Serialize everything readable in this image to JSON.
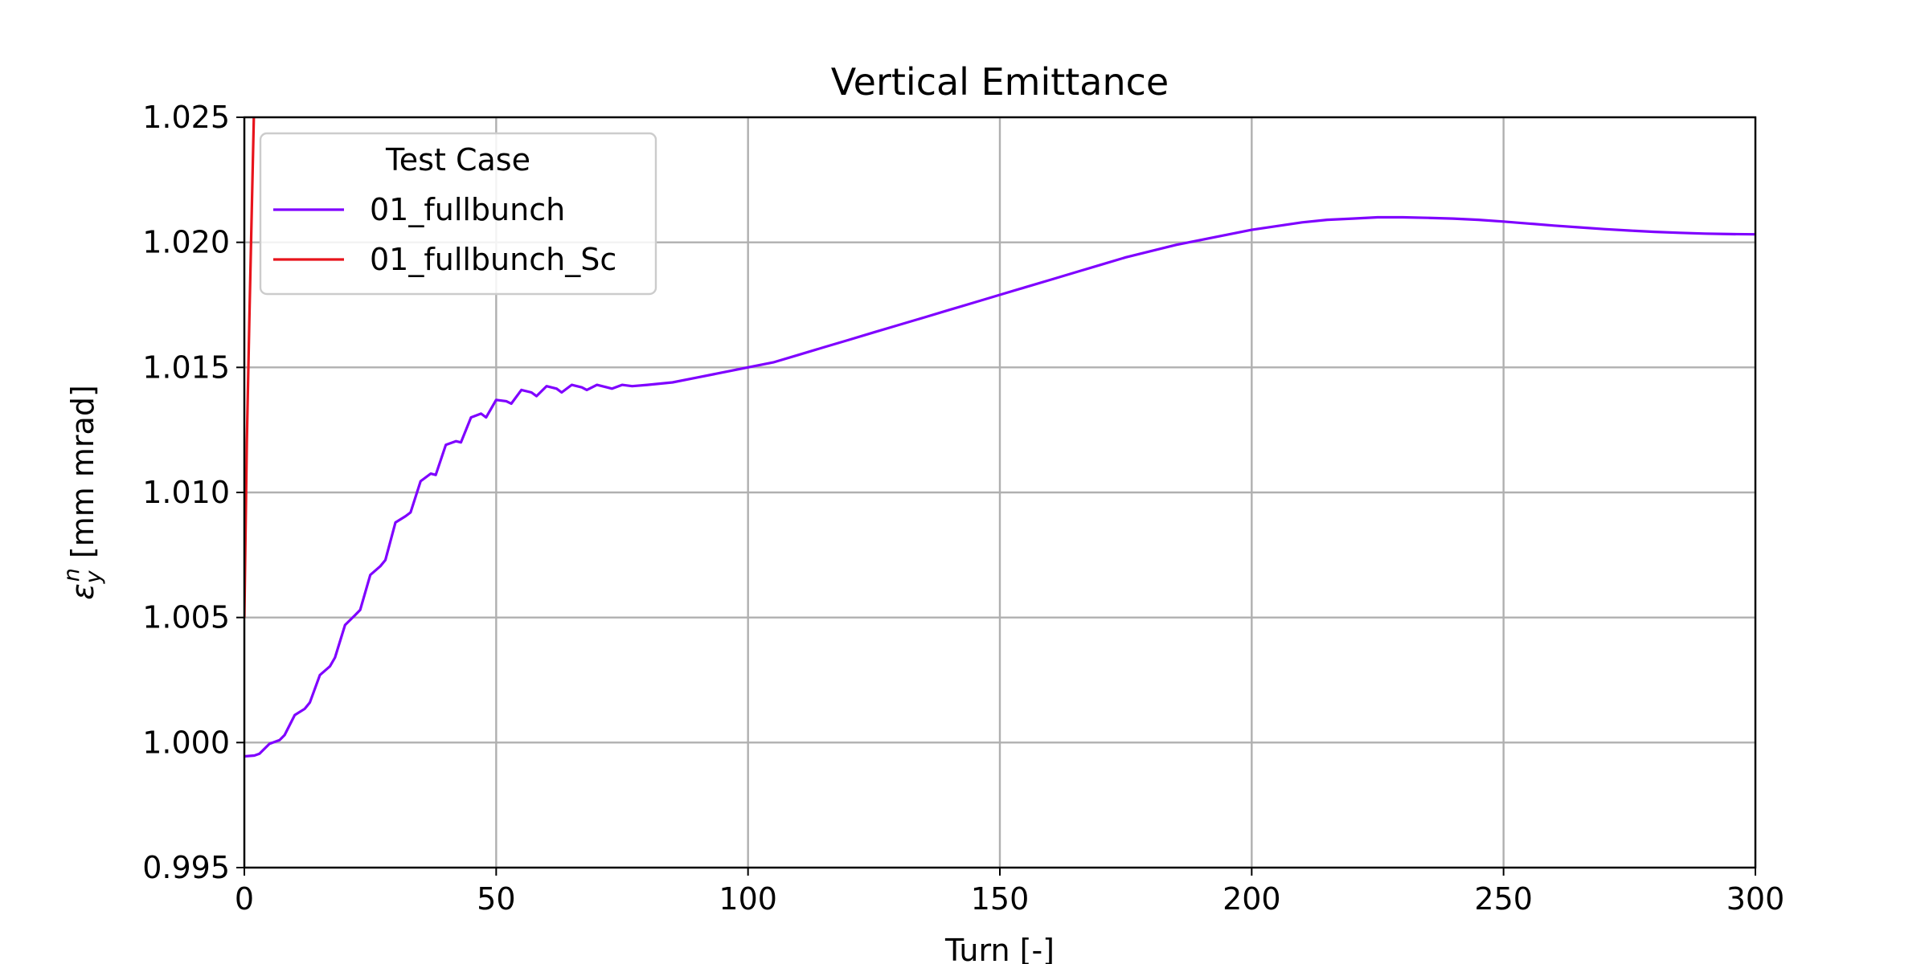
{
  "chart_data": {
    "type": "line",
    "title": "Vertical Emittance",
    "xlabel": "Turn [-]",
    "ylabel_symbol": "ε",
    "ylabel_sub": "y",
    "ylabel_sup": "n",
    "ylabel_unit": " [mm mrad]",
    "xlim": [
      0,
      300
    ],
    "ylim": [
      0.995,
      1.025
    ],
    "xticks": [
      0,
      50,
      100,
      150,
      200,
      250,
      300
    ],
    "xtick_labels": [
      "0",
      "50",
      "100",
      "150",
      "200",
      "250",
      "300"
    ],
    "yticks": [
      0.995,
      1.0,
      1.005,
      1.01,
      1.015,
      1.02,
      1.025
    ],
    "ytick_labels": [
      "0.995",
      "1.000",
      "1.005",
      "1.010",
      "1.015",
      "1.020",
      "1.025"
    ],
    "grid": true,
    "legend_title": "Test Case",
    "legend_position": "top-left",
    "series": [
      {
        "name": "01_fullbunch",
        "color": "#7f00ff",
        "x": [
          0,
          2,
          3,
          5,
          7,
          8,
          10,
          12,
          13,
          15,
          17,
          18,
          20,
          22,
          23,
          25,
          27,
          28,
          30,
          32,
          33,
          35,
          37,
          38,
          40,
          42,
          43,
          45,
          47,
          48,
          50,
          52,
          53,
          55,
          57,
          58,
          60,
          62,
          63,
          65,
          67,
          68,
          70,
          72,
          73,
          75,
          77,
          80,
          85,
          90,
          95,
          100,
          105,
          110,
          115,
          120,
          125,
          130,
          135,
          140,
          145,
          150,
          155,
          160,
          165,
          170,
          175,
          180,
          185,
          190,
          195,
          200,
          205,
          210,
          215,
          220,
          225,
          230,
          235,
          240,
          245,
          250,
          255,
          260,
          265,
          270,
          275,
          280,
          285,
          290,
          295,
          300
        ],
        "y": [
          0.99945,
          0.99948,
          0.99955,
          0.99995,
          1.0001,
          1.0003,
          1.0011,
          1.00135,
          1.0016,
          1.0027,
          1.00305,
          1.0034,
          1.0047,
          1.0051,
          1.0053,
          1.0067,
          1.00705,
          1.0073,
          1.0088,
          1.00905,
          1.0092,
          1.01045,
          1.01075,
          1.0107,
          1.0119,
          1.01205,
          1.012,
          1.013,
          1.01315,
          1.013,
          1.0137,
          1.01365,
          1.01355,
          1.0141,
          1.014,
          1.01385,
          1.01425,
          1.01415,
          1.014,
          1.0143,
          1.0142,
          1.0141,
          1.0143,
          1.0142,
          1.01415,
          1.0143,
          1.01425,
          1.0143,
          1.0144,
          1.0146,
          1.0148,
          1.015,
          1.0152,
          1.0155,
          1.0158,
          1.0161,
          1.0164,
          1.0167,
          1.017,
          1.0173,
          1.0176,
          1.0179,
          1.0182,
          1.0185,
          1.0188,
          1.0191,
          1.0194,
          1.01965,
          1.0199,
          1.0201,
          1.0203,
          1.0205,
          1.02065,
          1.0208,
          1.0209,
          1.02095,
          1.021,
          1.021,
          1.02098,
          1.02095,
          1.0209,
          1.02083,
          1.02075,
          1.02067,
          1.0206,
          1.02053,
          1.02047,
          1.02042,
          1.02038,
          1.02035,
          1.02033,
          1.02032
        ]
      },
      {
        "name": "01_fullbunch_Sc",
        "color": "#e8141c",
        "x": [
          0,
          0.5,
          1.0,
          1.5,
          2.0
        ],
        "y": [
          1.005,
          1.012,
          1.017,
          1.0215,
          1.026
        ]
      }
    ]
  }
}
